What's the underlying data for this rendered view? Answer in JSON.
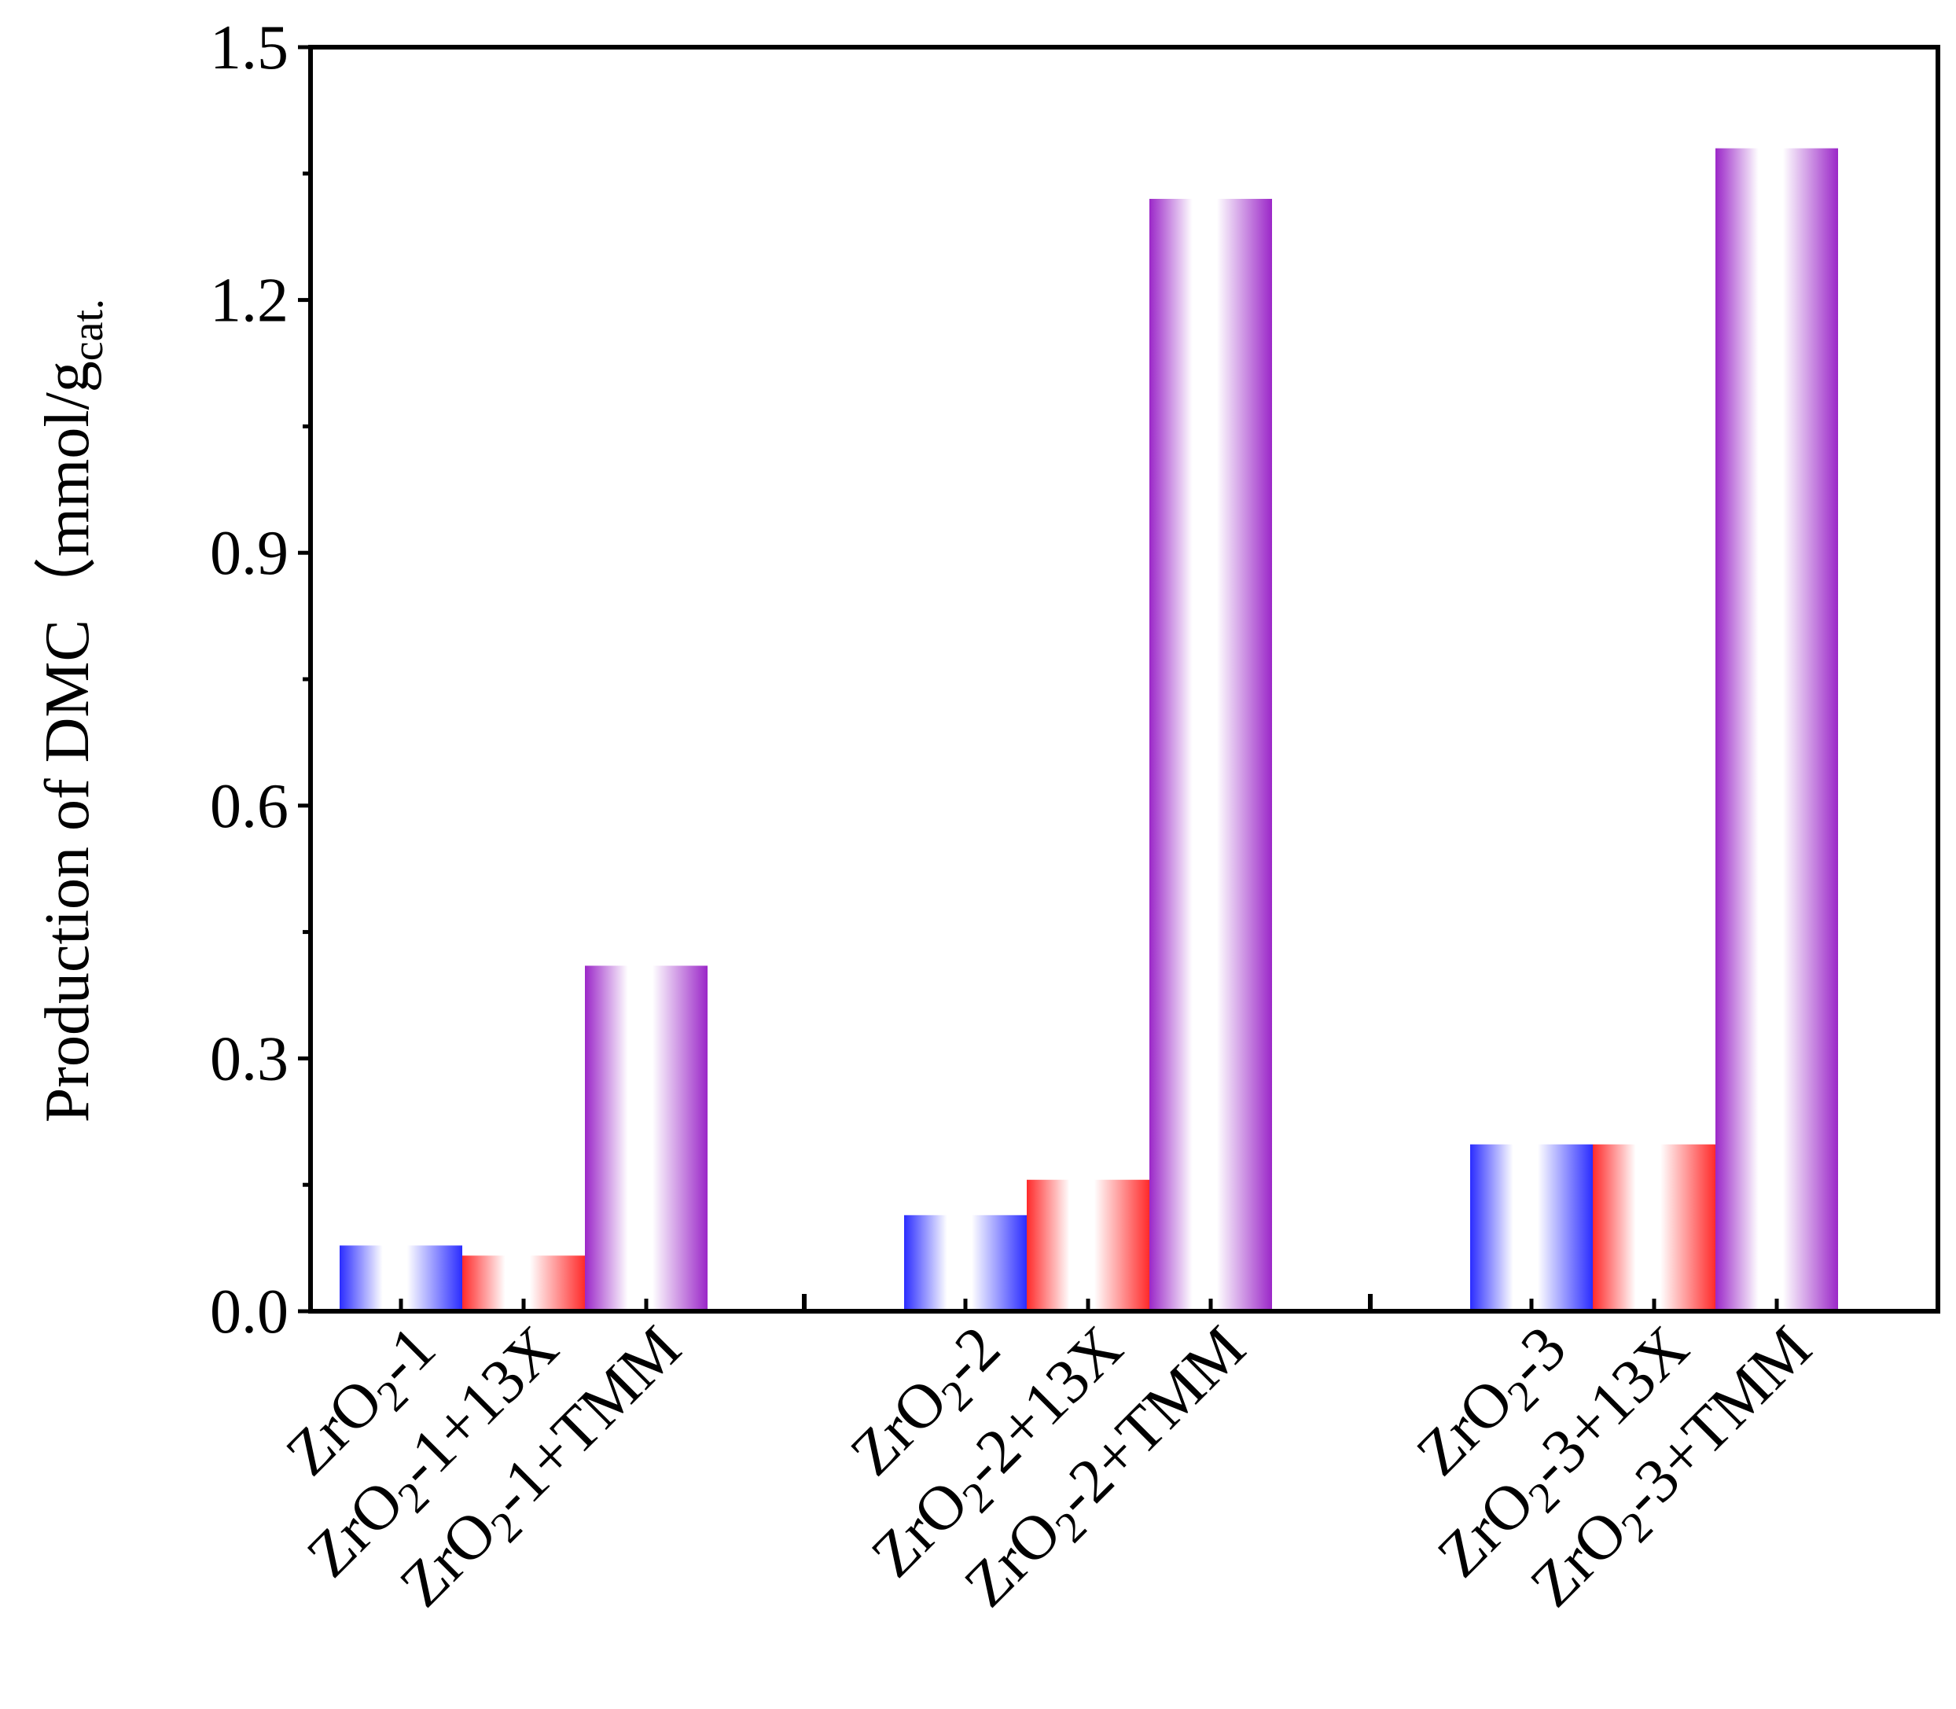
{
  "chart_data": {
    "type": "bar",
    "ylabel": "Production of DMC（mmol/g",
    "ylabel_sub": "cat.",
    "ylim": [
      0,
      1.5
    ],
    "y_ticks": [
      "0.0",
      "0.3",
      "0.6",
      "0.9",
      "1.2",
      "1.5"
    ],
    "grid": false,
    "bars": [
      {
        "label_main": "ZrO",
        "label_sub": "2",
        "label_rest": "-1",
        "value": 0.078,
        "style": "blue"
      },
      {
        "label_main": "ZrO",
        "label_sub": "2",
        "label_rest": "-1+13X",
        "value": 0.066,
        "style": "red"
      },
      {
        "label_main": "ZrO",
        "label_sub": "2",
        "label_rest": "-1+TMM",
        "value": 0.41,
        "style": "purple"
      },
      {
        "label_main": "ZrO",
        "label_sub": "2",
        "label_rest": "-2",
        "value": 0.114,
        "style": "blue"
      },
      {
        "label_main": "ZrO",
        "label_sub": "2",
        "label_rest": "-2+13X",
        "value": 0.156,
        "style": "red"
      },
      {
        "label_main": "ZrO",
        "label_sub": "2",
        "label_rest": "-2+TMM",
        "value": 1.32,
        "style": "purple"
      },
      {
        "label_main": "ZrO",
        "label_sub": "2",
        "label_rest": "-3",
        "value": 0.198,
        "style": "blue"
      },
      {
        "label_main": "ZrO",
        "label_sub": "2",
        "label_rest": "-3+13X",
        "value": 0.198,
        "style": "red"
      },
      {
        "label_main": "ZrO",
        "label_sub": "2",
        "label_rest": "-3+TMM",
        "value": 1.38,
        "style": "purple"
      }
    ],
    "colors": {
      "blue": "#2a2cff",
      "red": "#ff2a2a",
      "purple": "#9b27c8"
    }
  }
}
